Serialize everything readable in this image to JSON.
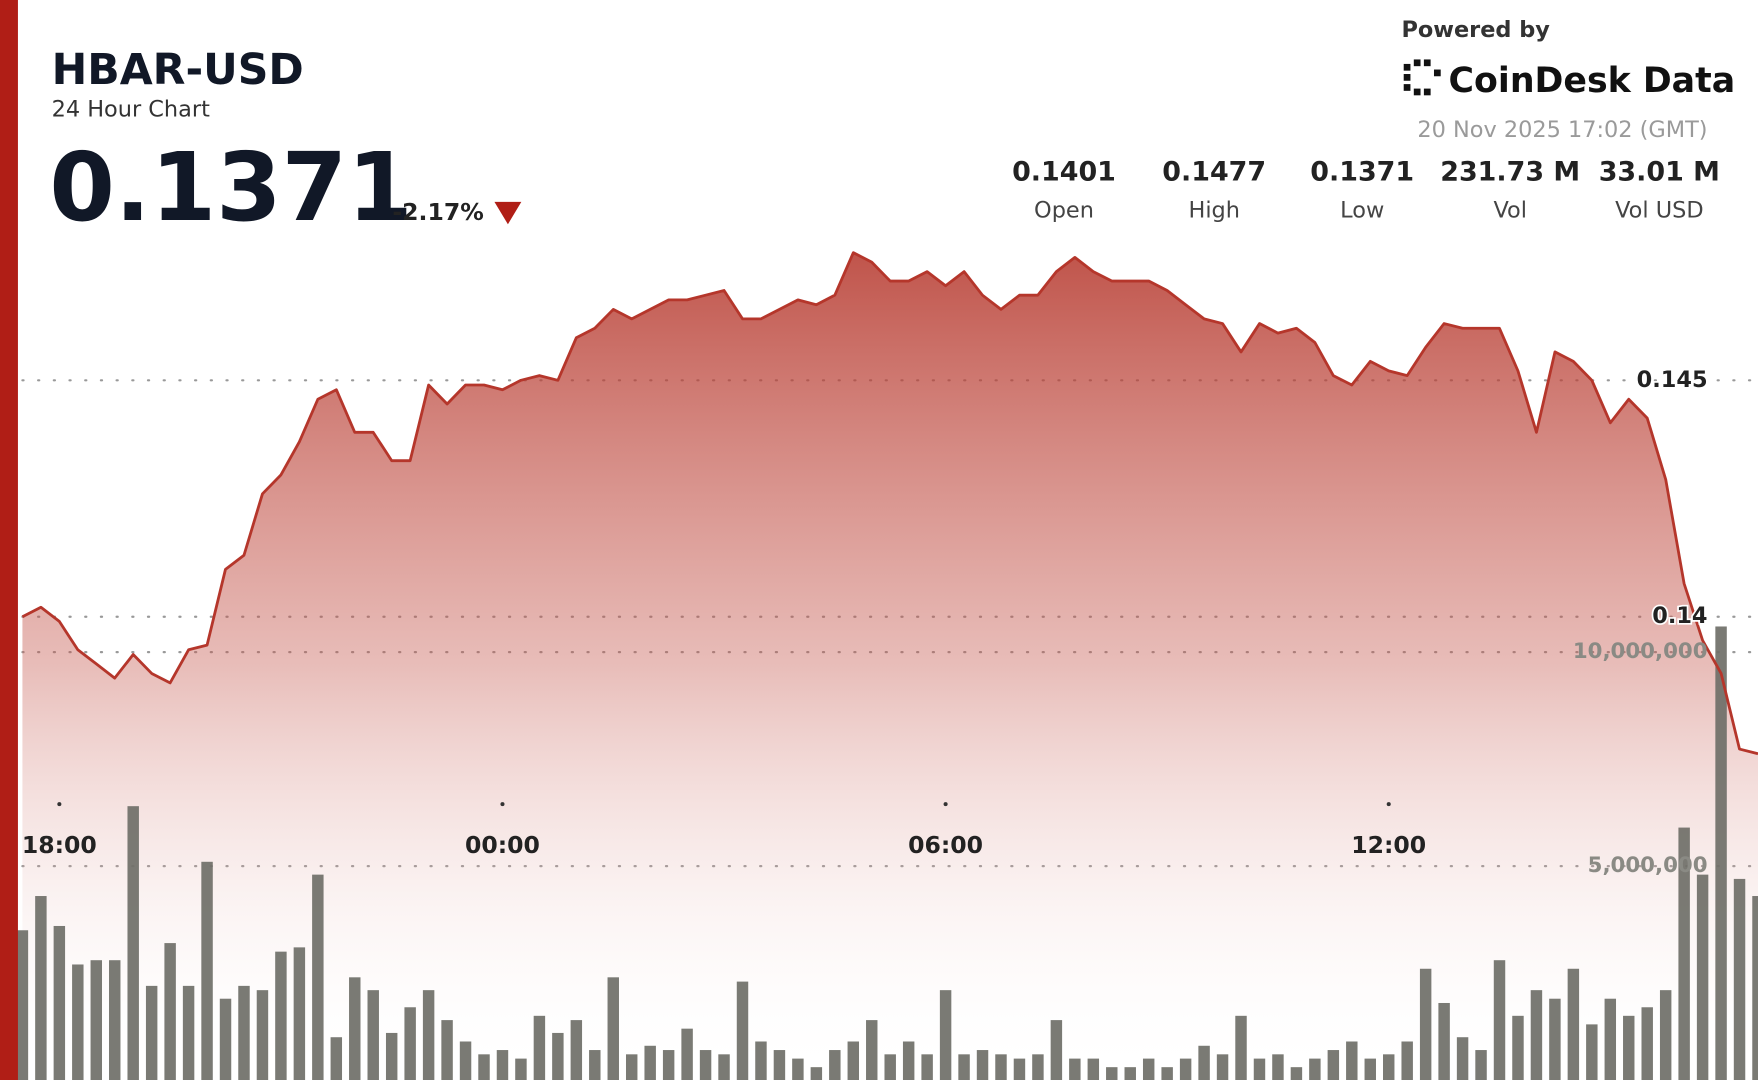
{
  "header": {
    "title": "HBAR-USD",
    "subtitle": "24 Hour Chart",
    "price": "0.1371",
    "change": "-2.17%",
    "stats": [
      {
        "value": "0.1401",
        "label": "Open"
      },
      {
        "value": "0.1477",
        "label": "High"
      },
      {
        "value": "0.1371",
        "label": "Low"
      },
      {
        "value": "231.73 M",
        "label": "Vol"
      },
      {
        "value": "33.01 M",
        "label": "Vol USD"
      }
    ],
    "powered_by": "Powered by",
    "brand": "CoinDesk Data",
    "timestamp": "20 Nov 2025 17:02 (GMT)"
  },
  "chart_data": {
    "type": "line",
    "x": [
      "17:30",
      "17:45",
      "18:00",
      "18:15",
      "18:30",
      "18:45",
      "19:00",
      "19:15",
      "19:30",
      "19:45",
      "20:00",
      "20:15",
      "20:30",
      "20:45",
      "21:00",
      "21:15",
      "21:30",
      "21:45",
      "22:00",
      "22:15",
      "22:30",
      "22:45",
      "23:00",
      "23:15",
      "23:30",
      "23:45",
      "00:00",
      "00:15",
      "00:30",
      "00:45",
      "01:00",
      "01:15",
      "01:30",
      "01:45",
      "02:00",
      "02:15",
      "02:30",
      "02:45",
      "03:00",
      "03:15",
      "03:30",
      "03:45",
      "04:00",
      "04:15",
      "04:30",
      "04:45",
      "05:00",
      "05:15",
      "05:30",
      "05:45",
      "06:00",
      "06:15",
      "06:30",
      "06:45",
      "07:00",
      "07:15",
      "07:30",
      "07:45",
      "08:00",
      "08:15",
      "08:30",
      "08:45",
      "09:00",
      "09:15",
      "09:30",
      "09:45",
      "10:00",
      "10:15",
      "10:30",
      "10:45",
      "11:00",
      "11:15",
      "11:30",
      "11:45",
      "12:00",
      "12:15",
      "12:30",
      "12:45",
      "13:00",
      "13:15",
      "13:30",
      "13:45",
      "14:00",
      "14:15",
      "14:30",
      "14:45",
      "15:00",
      "15:15",
      "15:30",
      "15:45",
      "16:00",
      "16:15",
      "16:30",
      "16:45",
      "17:00"
    ],
    "series": [
      {
        "type": "line",
        "color": "#b5362b",
        "values": [
          0.14,
          0.1402,
          0.1399,
          0.1393,
          0.139,
          0.1387,
          0.1392,
          0.1388,
          0.1386,
          0.1393,
          0.1394,
          0.141,
          0.1413,
          0.1426,
          0.143,
          0.1437,
          0.1446,
          0.1448,
          0.1439,
          0.1439,
          0.1433,
          0.1433,
          0.1449,
          0.1445,
          0.1449,
          0.1449,
          0.1448,
          0.145,
          0.1451,
          0.145,
          0.1459,
          0.1461,
          0.1465,
          0.1463,
          0.1465,
          0.1467,
          0.1467,
          0.1468,
          0.1469,
          0.1463,
          0.1463,
          0.1465,
          0.1467,
          0.1466,
          0.1468,
          0.1477,
          0.1475,
          0.1471,
          0.1471,
          0.1473,
          0.147,
          0.1473,
          0.1468,
          0.1465,
          0.1468,
          0.1468,
          0.1473,
          0.1476,
          0.1473,
          0.1471,
          0.1471,
          0.1471,
          0.1469,
          0.1466,
          0.1463,
          0.1462,
          0.1456,
          0.1462,
          0.146,
          0.1461,
          0.1458,
          0.1451,
          0.1449,
          0.1454,
          0.1452,
          0.1451,
          0.1457,
          0.1462,
          0.1461,
          0.1461,
          0.1461,
          0.1452,
          0.1439,
          0.1456,
          0.1454,
          0.145,
          0.1441,
          0.1446,
          0.1442,
          0.1429,
          0.1407,
          0.1395,
          0.1388,
          0.1372,
          0.1371
        ]
      },
      {
        "type": "bar",
        "axis": "y2",
        "color": "#6f6f68",
        "values": [
          3500000,
          4300000,
          3600000,
          2700000,
          2800000,
          2800000,
          6400000,
          2200000,
          3200000,
          2200000,
          5100000,
          1900000,
          2200000,
          2100000,
          3000000,
          3100000,
          4800000,
          1000000,
          2400000,
          2100000,
          1100000,
          1700000,
          2100000,
          1400000,
          900000,
          600000,
          700000,
          500000,
          1500000,
          1100000,
          1400000,
          700000,
          2400000,
          600000,
          800000,
          700000,
          1200000,
          700000,
          600000,
          2300000,
          900000,
          700000,
          500000,
          300000,
          700000,
          900000,
          1400000,
          600000,
          900000,
          600000,
          2100000,
          600000,
          700000,
          600000,
          500000,
          600000,
          1400000,
          500000,
          500000,
          300000,
          300000,
          500000,
          300000,
          500000,
          800000,
          600000,
          1500000,
          500000,
          600000,
          300000,
          500000,
          700000,
          900000,
          500000,
          600000,
          900000,
          2600000,
          1800000,
          1000000,
          700000,
          2800000,
          1500000,
          2100000,
          1900000,
          2600000,
          1300000,
          1900000,
          1500000,
          1700000,
          2100000,
          5900000,
          4800000,
          10600000,
          4700000,
          4300000
        ]
      }
    ],
    "xticks": [
      "18:00",
      "00:00",
      "06:00",
      "12:00"
    ],
    "ylim": [
      0.1302,
      0.1483
    ],
    "yticks": [
      0.14,
      0.145
    ],
    "y2lim": [
      0,
      20000000
    ],
    "y2ticks": [
      {
        "value": 5000000,
        "label": "5,000,000"
      },
      {
        "value": 10000000,
        "label": "10,000,000"
      }
    ],
    "grid": true
  }
}
